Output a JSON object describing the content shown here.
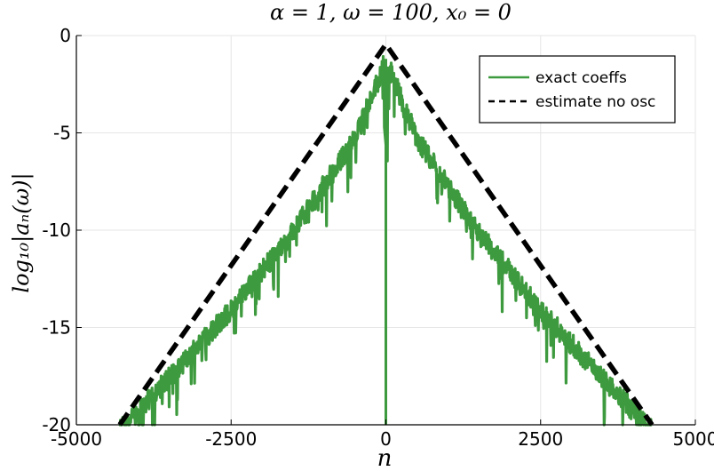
{
  "chart_data": {
    "type": "line",
    "title": "α = 1, ω = 100, x₀ = 0",
    "xlabel": "n",
    "ylabel": "log₁₀|aₙ(ω)|",
    "xlim": [
      -5000,
      5000
    ],
    "ylim": [
      -20,
      0
    ],
    "x_ticks": [
      -5000,
      -2500,
      0,
      2500,
      5000
    ],
    "x_tick_labels": [
      "-5000",
      "-2500",
      "0",
      "2500",
      "5000"
    ],
    "y_ticks": [
      0,
      -5,
      -10,
      -15,
      -20
    ],
    "y_tick_labels": [
      "0",
      "-5",
      "-10",
      "-15",
      "-20"
    ],
    "grid": true,
    "legend_position": "top-right",
    "series": [
      {
        "name": "exact coeffs",
        "style": "solid",
        "color": "#3e9a3e",
        "x": [
          -4300,
          -3500,
          -2500,
          -1500,
          -500,
          -30,
          0,
          30,
          500,
          1500,
          2500,
          3500,
          4300
        ],
        "values": [
          -20.0,
          -17.3,
          -13.8,
          -9.8,
          -5.0,
          -1.2,
          -20.0,
          -1.2,
          -5.0,
          -9.8,
          -13.8,
          -17.3,
          -20.0
        ]
      },
      {
        "name": "estimate no osc",
        "style": "dashed",
        "color": "#000000",
        "x": [
          -4300,
          0,
          4300
        ],
        "values": [
          -20.0,
          -0.45,
          -20.0
        ]
      }
    ]
  }
}
